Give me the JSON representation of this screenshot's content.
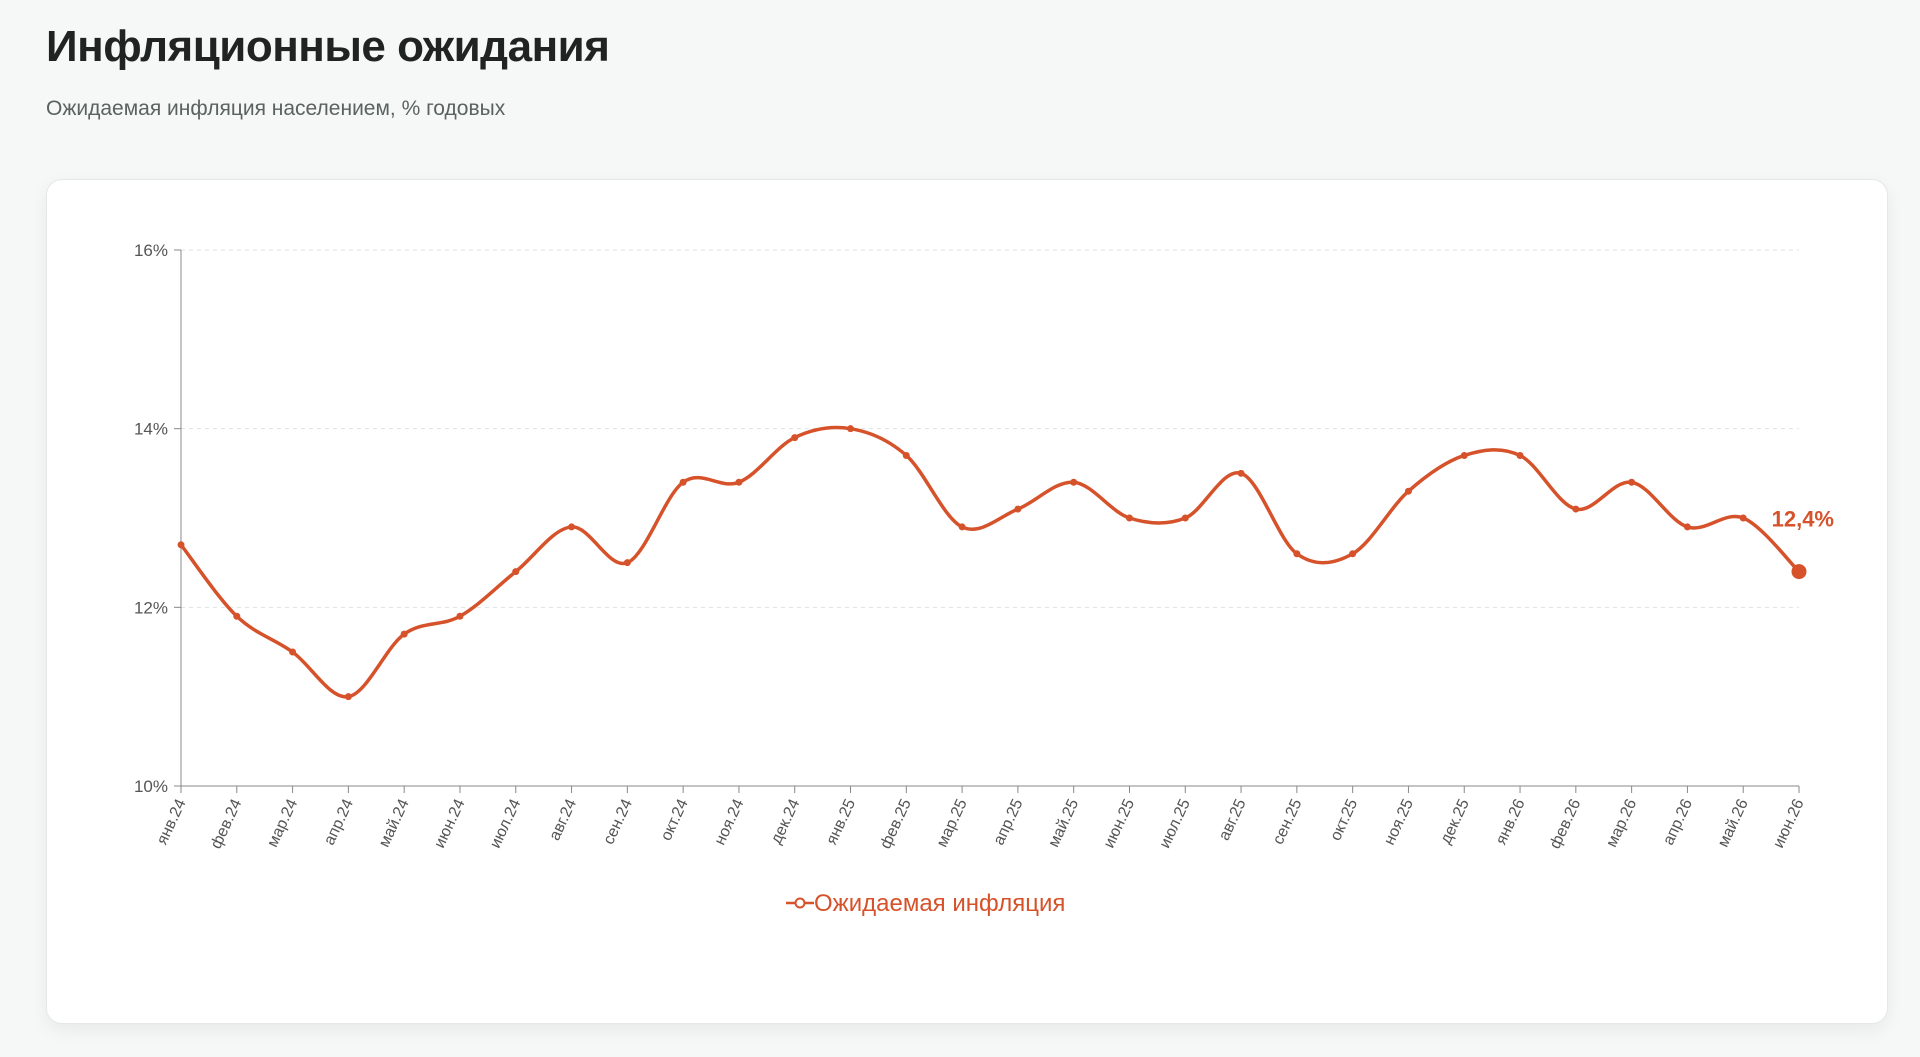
{
  "chart_data": {
    "type": "line",
    "title": "Инфляционные ожидания",
    "subtitle": "Ожидаемая инфляция населением, % годовых",
    "categories": [
      "янв.24",
      "фев.24",
      "мар.24",
      "апр.24",
      "май.24",
      "июн.24",
      "июл.24",
      "авг.24",
      "сен.24",
      "окт.24",
      "ноя.24",
      "дек.24",
      "янв.25",
      "фев.25",
      "мар.25",
      "апр.25",
      "май.25",
      "июн.25",
      "июл.25",
      "авг.25",
      "сен.25",
      "окт.25",
      "ноя.25",
      "дек.25",
      "янв.26",
      "фев.26",
      "мар.26",
      "апр.26",
      "май.26",
      "июн.26"
    ],
    "series": [
      {
        "name": "Ожидаемая инфляция",
        "color": "#d5522a",
        "values": [
          12.7,
          11.9,
          11.5,
          11.0,
          11.7,
          11.9,
          12.4,
          12.9,
          12.5,
          13.4,
          13.4,
          13.9,
          14.0,
          13.7,
          12.9,
          13.1,
          13.4,
          13.0,
          13.0,
          13.5,
          12.6,
          12.6,
          13.3,
          13.7,
          13.7,
          13.1,
          13.4,
          12.9,
          13.0,
          12.4
        ],
        "value_labels": [
          null,
          null,
          null,
          null,
          null,
          null,
          null,
          null,
          null,
          null,
          null,
          null,
          null,
          null,
          null,
          null,
          null,
          null,
          null,
          null,
          null,
          null,
          null,
          null,
          null,
          null,
          null,
          null,
          null,
          "12,4%"
        ]
      }
    ],
    "ylim": [
      10,
      16
    ],
    "yticks": [
      {
        "value": 10,
        "label": "10%"
      },
      {
        "value": 12,
        "label": "12%"
      },
      {
        "value": 14,
        "label": "14%"
      },
      {
        "value": 16,
        "label": "16%"
      }
    ],
    "grid": true
  }
}
